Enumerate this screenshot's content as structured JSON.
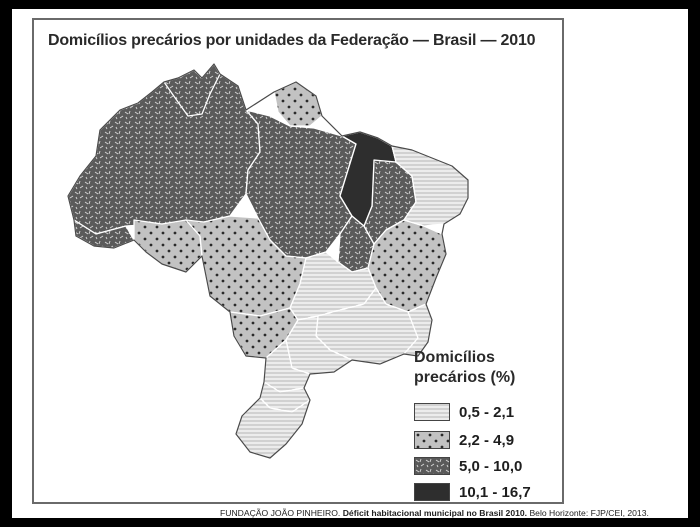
{
  "title": "Domicílios precários por unidades da Federação — Brasil — 2010",
  "legend": {
    "title_line1": "Domicílios",
    "title_line2": "precários (%)",
    "classes": [
      {
        "label": "0,5 - 2,1",
        "pattern": "horizontal-lines",
        "fill": "#e9e9e9"
      },
      {
        "label": "2,2 - 4,9",
        "pattern": "dots",
        "fill": "#bdbdbd"
      },
      {
        "label": "5,0 - 10,0",
        "pattern": "dashes",
        "fill": "#5c5c5c"
      },
      {
        "label": "10,1 - 16,7",
        "pattern": "solid",
        "fill": "#2e2e2e"
      }
    ]
  },
  "source": {
    "publisher": "FUNDAÇÃO JOÃO PINHEIRO.",
    "work": "Déficit habitacional municipal no Brasil 2010.",
    "rest": "Belo Horizonte: FJP/CEI, 2013."
  },
  "colors": {
    "background": "#000000",
    "paper": "#ffffff",
    "border": "#6a6a6a"
  }
}
